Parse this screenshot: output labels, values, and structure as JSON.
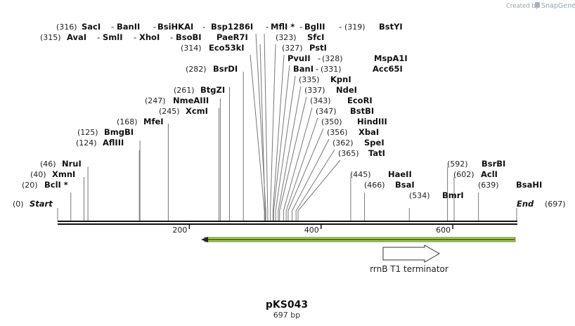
{
  "branding": {
    "created_by": "Created by",
    "product": "SnapGene"
  },
  "map": {
    "name": "pKS043",
    "length_label": "697 bp",
    "length": 697,
    "start_label": "Start",
    "start_pos": "(0)",
    "end_label": "End",
    "end_pos": "(697)",
    "ticks": [
      {
        "label": "200",
        "value": 200
      },
      {
        "label": "400",
        "value": 400
      },
      {
        "label": "600",
        "value": 600
      }
    ]
  },
  "feature": {
    "name": "rrnB T1 terminator"
  },
  "sites": [
    {
      "line": 0,
      "pos": 316,
      "pos_label": "(316)",
      "name": "SacI"
    },
    {
      "line": 0,
      "pos": 316,
      "name": "BanII"
    },
    {
      "line": 0,
      "pos": 316,
      "name": "BsiHKAI"
    },
    {
      "line": 0,
      "pos": 316,
      "name": "Bsp1286I"
    },
    {
      "line": 0,
      "pos": 319,
      "name": "MflI *"
    },
    {
      "line": 0,
      "pos": 319,
      "name": "BglII"
    },
    {
      "line": 0,
      "pos": 319,
      "pos_label": "(319)",
      "name": "BstYI"
    },
    {
      "line": 1,
      "pos": 315,
      "pos_label": "(315)",
      "name": "AvaI"
    },
    {
      "line": 1,
      "pos": 315,
      "name": "SmlI"
    },
    {
      "line": 1,
      "pos": 315,
      "name": "XhoI"
    },
    {
      "line": 1,
      "pos": 315,
      "name": "BsoBI"
    },
    {
      "line": 1,
      "pos": 315,
      "name": "PaeR7I"
    },
    {
      "line": 1,
      "pos": 323,
      "pos_label": "(323)",
      "name": "SfcI"
    },
    {
      "line": 2,
      "pos": 314,
      "pos_label": "(314)",
      "name": "Eco53kI"
    },
    {
      "line": 2,
      "pos": 327,
      "pos_label": "(327)",
      "name": "PstI"
    },
    {
      "line": 3,
      "pos": 328,
      "name": "PvuII"
    },
    {
      "line": 3,
      "pos": 328,
      "pos_label": "(328)",
      "name": "MspA1I"
    },
    {
      "line": 4,
      "pos": 282,
      "pos_label": "(282)",
      "name": "BsrDI"
    },
    {
      "line": 4,
      "pos": 331,
      "name": "BanI"
    },
    {
      "line": 4,
      "pos": 331,
      "pos_label": "(331)",
      "name": "Acc65I"
    },
    {
      "line": 5,
      "pos": 335,
      "pos_label": "(335)",
      "name": "KpnI"
    },
    {
      "line": 6,
      "pos": 261,
      "pos_label": "(261)",
      "name": "BtgZI"
    },
    {
      "line": 6,
      "pos": 337,
      "pos_label": "(337)",
      "name": "NdeI"
    },
    {
      "line": 7,
      "pos": 247,
      "pos_label": "(247)",
      "name": "NmeAIII"
    },
    {
      "line": 7,
      "pos": 343,
      "pos_label": "(343)",
      "name": "EcoRI"
    },
    {
      "line": 8,
      "pos": 245,
      "pos_label": "(245)",
      "name": "XcmI"
    },
    {
      "line": 8,
      "pos": 347,
      "pos_label": "(347)",
      "name": "BstBI"
    },
    {
      "line": 9,
      "pos": 168,
      "pos_label": "(168)",
      "name": "MfeI"
    },
    {
      "line": 9,
      "pos": 350,
      "pos_label": "(350)",
      "name": "HindIII"
    },
    {
      "line": 10,
      "pos": 125,
      "pos_label": "(125)",
      "name": "BmgBI"
    },
    {
      "line": 10,
      "pos": 356,
      "pos_label": "(356)",
      "name": "XbaI"
    },
    {
      "line": 11,
      "pos": 124,
      "pos_label": "(124)",
      "name": "AflIII"
    },
    {
      "line": 11,
      "pos": 362,
      "pos_label": "(362)",
      "name": "SpeI"
    },
    {
      "line": 12,
      "pos": 365,
      "pos_label": "(365)",
      "name": "TatI"
    },
    {
      "line": 13,
      "pos": 46,
      "pos_label": "(46)",
      "name": "NruI"
    },
    {
      "line": 13,
      "pos": 592,
      "pos_label": "(592)",
      "name": "BsrBI"
    },
    {
      "line": 14,
      "pos": 40,
      "pos_label": "(40)",
      "name": "XmnI"
    },
    {
      "line": 14,
      "pos": 445,
      "pos_label": "(445)",
      "name": "HaeII"
    },
    {
      "line": 14,
      "pos": 602,
      "pos_label": "(602)",
      "name": "AclI"
    },
    {
      "line": 15,
      "pos": 20,
      "pos_label": "(20)",
      "name": "BclI *"
    },
    {
      "line": 15,
      "pos": 466,
      "pos_label": "(466)",
      "name": "BsaI"
    },
    {
      "line": 15,
      "pos": 639,
      "pos_label": "(639)",
      "name": "BsaHI"
    },
    {
      "line": 16,
      "pos": 534,
      "pos_label": "(534)",
      "name": "BmrI"
    }
  ]
}
